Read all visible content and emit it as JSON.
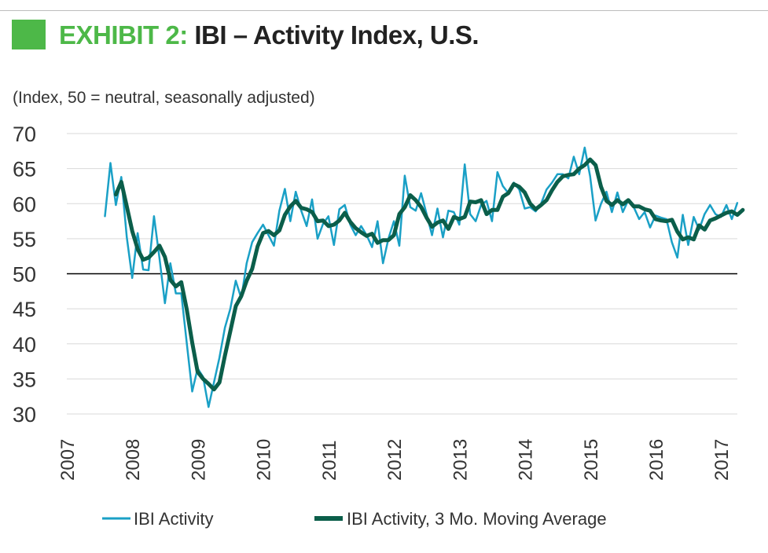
{
  "header": {
    "title_prefix": "EXHIBIT 2:",
    "title_main": "IBI – Activity Index, U.S.",
    "subtitle": "(Index, 50 = neutral, seasonally adjusted)"
  },
  "colors": {
    "accent": "#4db848",
    "activity_line": "#1aa0c6",
    "moving_avg_line": "#0b5e4a",
    "gridline": "#d9d9d9",
    "neutral_line": "#000000"
  },
  "chart_data": {
    "type": "line",
    "title": "IBI – Activity Index, U.S.",
    "subtitle": "(Index, 50 = neutral, seasonally adjusted)",
    "xlabel": "",
    "ylabel": "",
    "xlim": [
      2007,
      2017.25
    ],
    "ylim": [
      30,
      70
    ],
    "grid": true,
    "reference_line": {
      "y": 50,
      "label": "neutral"
    },
    "y_ticks": [
      30,
      35,
      40,
      45,
      50,
      55,
      60,
      65,
      70
    ],
    "x_ticks": [
      2007,
      2008,
      2009,
      2010,
      2011,
      2012,
      2013,
      2014,
      2015,
      2016,
      2017
    ],
    "legend_position": "bottom",
    "series": [
      {
        "name": "IBI Activity",
        "frequency": "monthly",
        "start": 2007.583,
        "step": 0.08333,
        "values": [
          58.2,
          65.8,
          59.8,
          63.8,
          55.2,
          49.4,
          55.8,
          50.6,
          50.5,
          58.2,
          52.2,
          45.8,
          51.5,
          47.2,
          47.2,
          40.2,
          33.2,
          36.5,
          35.3,
          31.0,
          34.5,
          38.0,
          42.3,
          45.0,
          49.0,
          46.5,
          51.5,
          54.5,
          55.8,
          57.0,
          55.5,
          54.0,
          59.0,
          62.1,
          57.5,
          61.7,
          59.0,
          56.8,
          60.6,
          55.0,
          57.1,
          58.2,
          54.1,
          59.2,
          59.8,
          57.0,
          55.5,
          56.8,
          55.5,
          53.8,
          57.5,
          51.5,
          55.0,
          57.5,
          54.0,
          64.0,
          59.5,
          59.0,
          61.5,
          58.5,
          55.5,
          59.3,
          55.2,
          59.0,
          58.8,
          57.0,
          65.6,
          58.5,
          57.5,
          59.8,
          60.4,
          57.5,
          64.5,
          62.5,
          61.5,
          63.0,
          62.0,
          59.3,
          59.5,
          58.9,
          60.0,
          62.0,
          63.0,
          64.2,
          64.2,
          63.6,
          66.7,
          64.2,
          68.0,
          63.9,
          57.6,
          60.0,
          61.7,
          58.8,
          61.6,
          58.8,
          60.5,
          59.5,
          57.8,
          58.8,
          56.6,
          58.3,
          58.0,
          57.8,
          54.5,
          52.3,
          58.4,
          54.1,
          58.1,
          56.3,
          58.5,
          59.8,
          58.5,
          58.1,
          59.8,
          57.8,
          60.1
        ]
      },
      {
        "name": "IBI Activity, 3 Mo. Moving Average",
        "frequency": "monthly",
        "start": 2007.75,
        "step": 0.08333,
        "values": [
          61.3,
          63.1,
          59.6,
          56.1,
          53.5,
          52.0,
          52.3,
          53.1,
          54.0,
          52.4,
          49.1,
          48.2,
          48.8,
          44.9,
          40.2,
          36.0,
          35.0,
          34.3,
          33.5,
          34.5,
          38.3,
          41.8,
          45.4,
          46.8,
          49.0,
          50.7,
          53.9,
          55.8,
          56.1,
          55.5,
          56.2,
          58.4,
          59.6,
          60.4,
          59.4,
          59.2,
          58.8,
          57.5,
          57.6,
          56.8,
          57.0,
          57.6,
          58.7,
          57.4,
          56.5,
          55.9,
          55.4,
          55.7,
          54.4,
          54.8,
          54.8,
          55.5,
          58.5,
          59.5,
          61.2,
          60.5,
          59.5,
          58.0,
          56.7,
          57.3,
          57.6,
          56.4,
          58.1,
          57.8,
          58.1,
          60.3,
          60.2,
          60.5,
          58.5,
          59.1,
          59.1,
          61.0,
          61.5,
          62.8,
          62.4,
          61.6,
          60.0,
          59.2,
          59.8,
          60.5,
          61.9,
          63.1,
          63.9,
          64.1,
          64.2,
          65.0,
          65.5,
          66.3,
          65.5,
          62.4,
          60.4,
          59.8,
          60.5,
          59.9,
          60.5,
          59.6,
          59.6,
          59.2,
          59.0,
          57.8,
          57.6,
          57.5,
          57.7,
          56.0,
          54.9,
          55.2,
          54.9,
          56.9,
          56.3,
          57.6,
          57.9,
          58.3,
          58.7,
          58.9,
          58.4,
          59.1
        ]
      }
    ]
  }
}
